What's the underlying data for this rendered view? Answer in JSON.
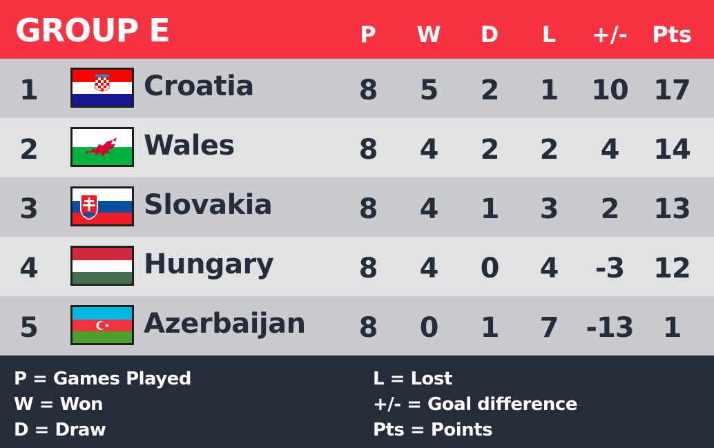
{
  "header": {
    "title": "GROUP E",
    "columns": {
      "p": "P",
      "w": "W",
      "d": "D",
      "l": "L",
      "gd": "+/-",
      "pts": "Pts"
    }
  },
  "rows": [
    {
      "rank": "1",
      "team": "Croatia",
      "flag": "croatia-flag",
      "p": "8",
      "w": "5",
      "d": "2",
      "l": "1",
      "gd": "10",
      "pts": "17"
    },
    {
      "rank": "2",
      "team": "Wales",
      "flag": "wales-flag",
      "p": "8",
      "w": "4",
      "d": "2",
      "l": "2",
      "gd": "4",
      "pts": "14"
    },
    {
      "rank": "3",
      "team": "Slovakia",
      "flag": "slovakia-flag",
      "p": "8",
      "w": "4",
      "d": "1",
      "l": "3",
      "gd": "2",
      "pts": "13"
    },
    {
      "rank": "4",
      "team": "Hungary",
      "flag": "hungary-flag",
      "p": "8",
      "w": "4",
      "d": "0",
      "l": "4",
      "gd": "-3",
      "pts": "12"
    },
    {
      "rank": "5",
      "team": "Azerbaijan",
      "flag": "azerbaijan-flag",
      "p": "8",
      "w": "0",
      "d": "1",
      "l": "7",
      "gd": "-13",
      "pts": "1"
    }
  ],
  "legend": {
    "p": "P = Games Played",
    "w": "W = Won",
    "d": "D = Draw",
    "l": "L = Lost",
    "gd": "+/- = Goal difference",
    "pts": "Pts = Points"
  },
  "colors": {
    "header_bg": "#f63343",
    "row_odd": "#c9cbce",
    "row_even": "#e1e2e4",
    "legend_bg": "#262d3a",
    "text_dark": "#262d3a"
  }
}
